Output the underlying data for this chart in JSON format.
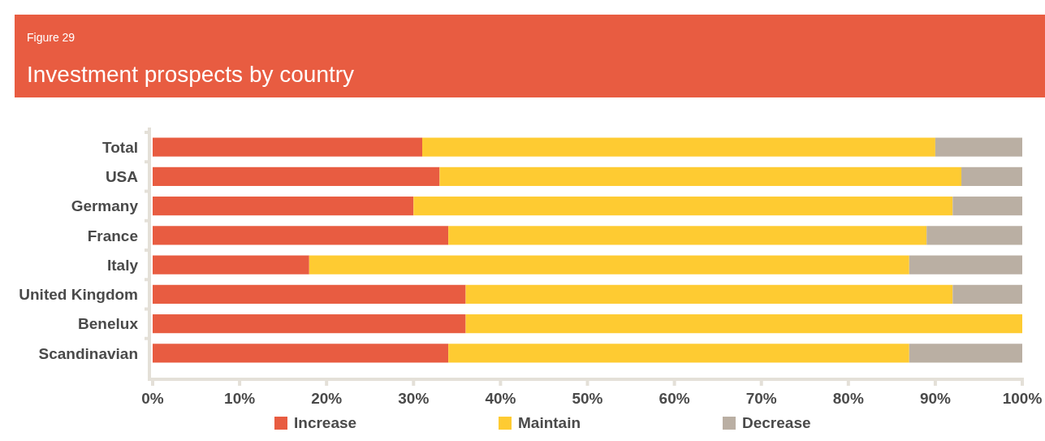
{
  "chart_data": {
    "type": "bar",
    "orientation": "horizontal",
    "stacked": true,
    "subtitle": "Figure 29",
    "title": "Investment prospects by country",
    "categories": [
      "Total",
      "USA",
      "Germany",
      "France",
      "Italy",
      "United Kingdom",
      "Benelux",
      "Scandinavian"
    ],
    "series": [
      {
        "name": "Increase",
        "color": "#e85c41",
        "values": [
          31,
          33,
          30,
          34,
          18,
          36,
          36,
          34
        ]
      },
      {
        "name": "Maintain",
        "color": "#fecb32",
        "values": [
          59,
          60,
          62,
          55,
          69,
          56,
          64,
          53
        ]
      },
      {
        "name": "Decrease",
        "color": "#baafa3",
        "values": [
          10,
          7,
          8,
          11,
          13,
          8,
          0,
          13
        ]
      }
    ],
    "xlim": [
      0,
      100
    ],
    "xticks": [
      {
        "value": 0,
        "label": "0%"
      },
      {
        "value": 10,
        "label": "10%"
      },
      {
        "value": 20,
        "label": "20%"
      },
      {
        "value": 30,
        "label": "30%"
      },
      {
        "value": 40,
        "label": "40%"
      },
      {
        "value": 50,
        "label": "50%"
      },
      {
        "value": 60,
        "label": "60%"
      },
      {
        "value": 70,
        "label": "70%"
      },
      {
        "value": 80,
        "label": "80%"
      },
      {
        "value": 90,
        "label": "90%"
      },
      {
        "value": 100,
        "label": "100%"
      }
    ],
    "grid": false,
    "legend": "bottom"
  }
}
